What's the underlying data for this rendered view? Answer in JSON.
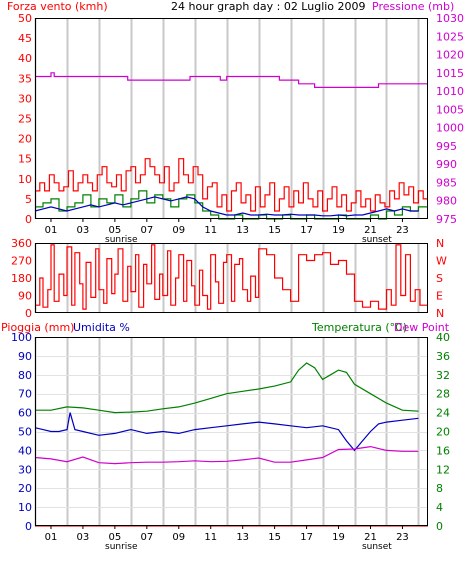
{
  "header": {
    "left_title": "Forza vento (kmh)",
    "center_title": "24 hour graph day : 02 Luglio 2009",
    "right_title": "Pressione (mb)"
  },
  "bottom_header": {
    "left_title_1": "Pioggia (mm)",
    "left_title_2": "Umidita %",
    "right_title_1": "Temperatura (°C)",
    "right_title_2": "Dew Point"
  },
  "colors": {
    "frame": "#000000",
    "vgrid": "#c8c8c8",
    "hgrid": "#e2e2e2",
    "red": "#ff0000",
    "green": "#008000",
    "blue": "#0000c0",
    "magenta": "#d000d0",
    "rain": "#ff3030"
  },
  "time_axis": {
    "labels": [
      "01",
      "03",
      "05",
      "07",
      "09",
      "11",
      "13",
      "15",
      "17",
      "19",
      "21",
      "23"
    ],
    "label_hours": [
      1,
      3,
      5,
      7,
      9,
      11,
      13,
      15,
      17,
      19,
      21,
      23
    ],
    "gridline_hours": [
      0,
      2,
      4,
      6,
      8,
      10,
      12,
      14,
      16,
      18,
      20,
      22,
      24
    ],
    "sunrise_label": "sunrise",
    "sunrise_hour": 5.4,
    "sunset_label": "sunset",
    "sunset_hour": 21.4
  },
  "chart_data": [
    {
      "id": "wind-pressure",
      "type": "line",
      "x_unit": "hour",
      "xlim": [
        0,
        24.6
      ],
      "y_left": {
        "label": "Forza vento (kmh)",
        "lim": [
          0,
          50
        ],
        "ticks": [
          0,
          5,
          10,
          15,
          20,
          25,
          30,
          35,
          40,
          45,
          50
        ]
      },
      "y_right": {
        "label": "Pressione (mb)",
        "lim": [
          975,
          1030
        ],
        "ticks": [
          975,
          980,
          985,
          990,
          995,
          1000,
          1005,
          1010,
          1015,
          1020,
          1025,
          1030
        ]
      },
      "series": [
        {
          "name": "Pressione",
          "axis": "right",
          "color": "#d000d0",
          "step": true,
          "x": [
            0,
            1.0,
            1.2,
            5.0,
            5.8,
            9.2,
            9.7,
            11.0,
            11.6,
            12.0,
            13.0,
            15.0,
            15.3,
            16.0,
            16.5,
            17.0,
            17.5,
            18.5,
            21.5,
            24.6
          ],
          "y": [
            1014,
            1015,
            1014,
            1014,
            1013,
            1013,
            1014,
            1014,
            1013,
            1014,
            1014,
            1014,
            1013,
            1013,
            1012,
            1012,
            1011,
            1011,
            1012,
            1012
          ]
        },
        {
          "name": "Raffica",
          "axis": "left",
          "color": "#ff0000",
          "step": true,
          "x": [
            0,
            0.3,
            0.6,
            0.9,
            1.2,
            1.5,
            1.8,
            2.1,
            2.4,
            2.7,
            3.0,
            3.3,
            3.6,
            3.9,
            4.2,
            4.5,
            4.8,
            5.1,
            5.4,
            5.7,
            6.0,
            6.3,
            6.6,
            6.9,
            7.2,
            7.5,
            7.8,
            8.1,
            8.4,
            8.7,
            9.0,
            9.3,
            9.6,
            9.9,
            10.2,
            10.5,
            10.8,
            11.1,
            11.4,
            11.7,
            12.0,
            12.3,
            12.6,
            12.9,
            13.2,
            13.5,
            13.8,
            14.1,
            14.4,
            14.7,
            15.0,
            15.3,
            15.6,
            15.9,
            16.2,
            16.5,
            16.8,
            17.1,
            17.4,
            17.7,
            18.0,
            18.3,
            18.6,
            18.9,
            19.2,
            19.5,
            19.8,
            20.1,
            20.4,
            20.7,
            21.0,
            21.3,
            21.6,
            21.9,
            22.2,
            22.5,
            22.8,
            23.1,
            23.4,
            23.7,
            24.0,
            24.3
          ],
          "y": [
            7,
            9,
            7,
            11,
            9,
            7,
            8,
            12,
            7,
            9,
            11,
            9,
            7,
            11,
            13,
            9,
            8,
            11,
            7,
            12,
            13,
            9,
            11,
            15,
            13,
            11,
            9,
            13,
            7,
            9,
            15,
            11,
            9,
            13,
            11,
            5,
            8,
            9,
            3,
            6,
            2,
            7,
            9,
            4,
            6,
            2,
            8,
            3,
            6,
            9,
            2,
            5,
            8,
            3,
            7,
            4,
            9,
            5,
            3,
            7,
            2,
            5,
            8,
            3,
            6,
            2,
            4,
            7,
            3,
            5,
            2,
            6,
            4,
            3,
            7,
            5,
            9,
            6,
            8,
            4,
            7,
            5
          ]
        },
        {
          "name": "Vento medio",
          "axis": "left",
          "color": "#008000",
          "step": true,
          "x": [
            0,
            0.5,
            1.0,
            1.5,
            2.0,
            2.5,
            3.0,
            3.5,
            4.0,
            4.5,
            5.0,
            5.5,
            6.0,
            6.5,
            7.0,
            7.5,
            8.0,
            8.5,
            9.0,
            9.5,
            10.0,
            10.5,
            11.0,
            11.5,
            12.0,
            12.5,
            13.0,
            13.5,
            14.0,
            14.5,
            15.0,
            15.5,
            16.0,
            16.5,
            17.0,
            17.5,
            18.0,
            18.5,
            19.0,
            19.5,
            20.0,
            20.5,
            21.0,
            21.5,
            22.0,
            22.5,
            23.0,
            23.5,
            24.0
          ],
          "y": [
            3,
            4,
            5,
            2,
            3,
            4,
            6,
            3,
            5,
            4,
            6,
            3,
            5,
            7,
            4,
            6,
            5,
            3,
            5,
            6,
            4,
            2,
            1,
            0,
            0,
            1,
            0,
            0,
            1,
            0,
            0,
            1,
            0,
            0,
            1,
            0,
            0,
            0,
            1,
            0,
            0,
            0,
            1,
            0,
            2,
            1,
            3,
            2,
            3
          ]
        },
        {
          "name": "Vento (media mobile)",
          "axis": "left",
          "color": "#0000c0",
          "step": false,
          "x": [
            0,
            0.5,
            1.0,
            1.5,
            2.0,
            2.5,
            3.0,
            3.5,
            4.0,
            4.5,
            5.0,
            5.5,
            6.0,
            6.5,
            7.0,
            7.5,
            8.0,
            8.5,
            9.0,
            9.5,
            10.0,
            10.5,
            11.0,
            11.5,
            12.0,
            12.5,
            13.0,
            13.5,
            14.0,
            14.5,
            15.0,
            15.5,
            16.0,
            16.5,
            17.0,
            17.5,
            18.0,
            18.5,
            19.0,
            19.5,
            20.0,
            20.5,
            21.0,
            21.5,
            22.0,
            22.5,
            23.0,
            23.5,
            24.0
          ],
          "y": [
            2,
            2.5,
            3,
            2.5,
            2,
            2.5,
            3,
            3.5,
            3,
            3.5,
            4,
            3.5,
            4,
            4.5,
            5,
            5.5,
            5,
            4.5,
            5,
            5.5,
            5,
            3,
            2,
            1.5,
            1,
            1,
            1.5,
            1,
            1,
            1.2,
            1,
            1,
            1.2,
            1,
            1,
            1,
            0.8,
            0.8,
            1,
            0.8,
            1,
            1,
            1.5,
            2,
            2.5,
            2,
            2.5,
            2,
            2
          ]
        }
      ]
    },
    {
      "id": "wind-direction",
      "type": "line",
      "x_unit": "hour",
      "xlim": [
        0,
        24.6
      ],
      "y_left": {
        "lim": [
          0,
          360
        ],
        "ticks": [
          0,
          90,
          180,
          270,
          360
        ]
      },
      "y_right": {
        "ticks": [
          "N",
          "E",
          "S",
          "W",
          "N"
        ]
      },
      "series": [
        {
          "name": "Direzione",
          "color": "#ff0000",
          "step": true,
          "x": [
            0,
            0.3,
            0.5,
            0.8,
            1.0,
            1.2,
            1.5,
            1.8,
            2.0,
            2.3,
            2.5,
            2.8,
            3.0,
            3.2,
            3.5,
            3.8,
            4.0,
            4.3,
            4.5,
            4.8,
            5.0,
            5.2,
            5.5,
            5.8,
            6.0,
            6.3,
            6.5,
            6.8,
            7.0,
            7.3,
            7.5,
            7.8,
            8.0,
            8.3,
            8.5,
            8.8,
            9.0,
            9.3,
            9.5,
            9.8,
            10.0,
            10.3,
            10.5,
            10.8,
            11.0,
            11.3,
            11.5,
            11.8,
            12.0,
            12.3,
            12.5,
            12.8,
            13.0,
            13.3,
            13.5,
            13.8,
            14.0,
            14.5,
            15.0,
            15.5,
            16.0,
            16.5,
            17.0,
            17.5,
            18.0,
            18.5,
            19.0,
            19.5,
            20.0,
            20.5,
            21.0,
            21.5,
            22.0,
            22.3,
            22.6,
            22.9,
            23.2,
            23.5,
            23.8,
            24.1
          ],
          "y": [
            40,
            180,
            30,
            120,
            350,
            60,
            200,
            90,
            340,
            40,
            310,
            150,
            20,
            260,
            80,
            330,
            120,
            50,
            280,
            100,
            200,
            330,
            60,
            240,
            110,
            300,
            30,
            250,
            150,
            350,
            70,
            200,
            90,
            320,
            40,
            180,
            300,
            60,
            270,
            140,
            40,
            220,
            90,
            20,
            300,
            160,
            50,
            260,
            300,
            60,
            250,
            280,
            120,
            60,
            190,
            80,
            330,
            300,
            180,
            120,
            60,
            300,
            270,
            300,
            310,
            250,
            270,
            200,
            60,
            30,
            60,
            20,
            120,
            40,
            350,
            90,
            300,
            60,
            120,
            40
          ]
        }
      ]
    },
    {
      "id": "rain-humidity-temperature",
      "type": "line",
      "x_unit": "hour",
      "xlim": [
        0,
        24.6
      ],
      "y_left": {
        "label": "Pioggia (mm) / Umidita %",
        "lim": [
          0,
          100
        ],
        "ticks": [
          0,
          10,
          20,
          30,
          40,
          50,
          60,
          70,
          80,
          90,
          100
        ]
      },
      "y_right": {
        "label": "Temperatura (°C)",
        "lim": [
          0,
          40
        ],
        "ticks": [
          0,
          4,
          8,
          12,
          16,
          20,
          24,
          28,
          32,
          36,
          40
        ]
      },
      "series": [
        {
          "name": "Temperatura",
          "axis": "right",
          "color": "#008000",
          "step": false,
          "x": [
            0,
            1,
            2,
            3,
            4,
            5,
            6,
            7,
            8,
            9,
            10,
            11,
            12,
            13,
            14,
            15,
            16,
            16.5,
            17,
            17.5,
            18,
            18.5,
            19,
            19.5,
            20,
            21,
            22,
            23,
            24
          ],
          "y": [
            24.5,
            24.5,
            25.2,
            25,
            24.5,
            24,
            24.1,
            24.3,
            24.8,
            25.2,
            26,
            27,
            28,
            28.5,
            29,
            29.6,
            30.5,
            33,
            34.5,
            33.5,
            31,
            32,
            33,
            32.5,
            30,
            28,
            26,
            24.5,
            24.3
          ]
        },
        {
          "name": "Umidita",
          "axis": "left",
          "color": "#0000c0",
          "step": false,
          "x": [
            0,
            0.5,
            1,
            1.5,
            2,
            2.2,
            2.5,
            3,
            4,
            5,
            6,
            7,
            8,
            9,
            10,
            11,
            12,
            13,
            14,
            15,
            16,
            17,
            18,
            19,
            19.5,
            20,
            20.5,
            21,
            21.5,
            22,
            23,
            24
          ],
          "y": [
            52,
            51,
            50,
            50,
            51,
            60,
            51,
            50,
            48,
            49,
            51,
            49,
            50,
            49,
            51,
            52,
            53,
            54,
            55,
            54,
            53,
            52,
            53,
            51,
            45,
            40,
            45,
            50,
            54,
            55,
            56,
            57
          ]
        },
        {
          "name": "Dew Point",
          "axis": "right",
          "color": "#d000d0",
          "step": false,
          "x": [
            0,
            1,
            2,
            3,
            4,
            5,
            6,
            7,
            8,
            9,
            10,
            11,
            12,
            13,
            14,
            15,
            16,
            17,
            18,
            19,
            20,
            21,
            22,
            23,
            24
          ],
          "y": [
            14.5,
            14.2,
            13.6,
            14.6,
            13.4,
            13.2,
            13.4,
            13.5,
            13.5,
            13.6,
            13.8,
            13.6,
            13.7,
            14,
            14.4,
            13.5,
            13.5,
            14,
            14.5,
            16.2,
            16.3,
            16.8,
            16,
            15.8,
            15.8
          ]
        },
        {
          "name": "Pioggia",
          "axis": "left",
          "color": "#ff3030",
          "step": false,
          "x": [
            0,
            24.6
          ],
          "y": [
            0,
            0
          ]
        }
      ]
    }
  ]
}
